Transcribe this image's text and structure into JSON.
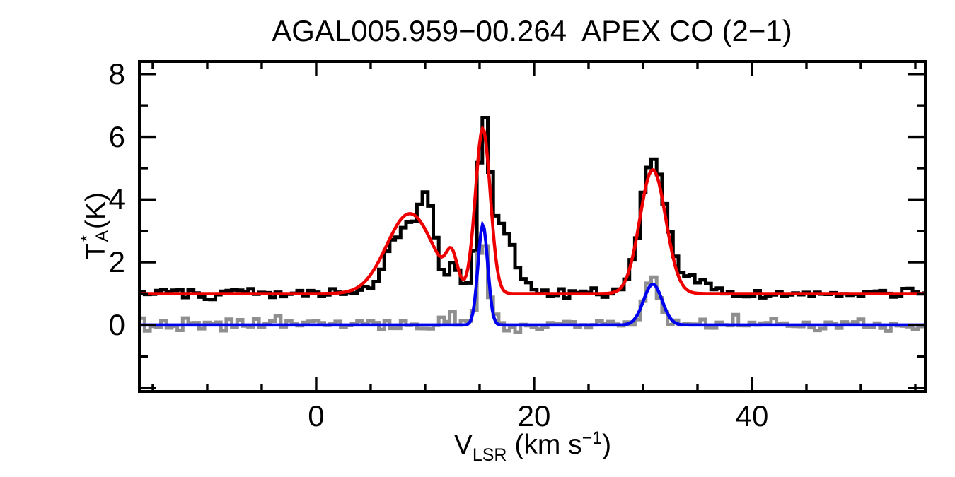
{
  "chart_data": {
    "type": "line",
    "title": "AGAL005.959−00.264  APEX CO (2−1)",
    "xlabel": "VLSR (km s−1)",
    "ylabel": "TA* (K)",
    "x_axis_label": {
      "main": "V",
      "sub": "LSR",
      "unit_open": " (km s",
      "unit_sup": "−1",
      "unit_close": ")"
    },
    "y_axis_label": {
      "main": "T",
      "sup": "*",
      "sub": "A",
      "unit": " (K)"
    },
    "xlim": [
      -16.23,
      55.91
    ],
    "ylim": [
      -2.12,
      8.4
    ],
    "grid": false,
    "legend": null,
    "x_major_ticks": [
      {
        "value": 0,
        "label": "0"
      },
      {
        "value": 20,
        "label": "20"
      },
      {
        "value": 40,
        "label": "40"
      }
    ],
    "x_minor_ticks": [
      -15,
      -10,
      -5,
      5,
      10,
      15,
      25,
      30,
      35,
      45,
      50,
      55
    ],
    "y_major_ticks": [
      {
        "value": -2,
        "label": ""
      },
      {
        "value": 0,
        "label": "0"
      },
      {
        "value": 2,
        "label": "2"
      },
      {
        "value": 4,
        "label": "4"
      },
      {
        "value": 6,
        "label": "6"
      },
      {
        "value": 8,
        "label": "8"
      }
    ],
    "y_minor_ticks": [
      -1,
      1,
      3,
      5,
      7
    ],
    "channel_width_kms": 0.5,
    "series": [
      {
        "name": "co21-observed-spectrum",
        "type": "histogram",
        "color": "#000000",
        "line_width": 5,
        "baseline": 1.0,
        "noise_sigma": 0.085,
        "noise_seed": 101,
        "profile_anchors": [
          [
            -16.25,
            1.05
          ],
          [
            -14,
            1.0
          ],
          [
            -12,
            1.05
          ],
          [
            -10,
            1.0
          ],
          [
            -8,
            1.02
          ],
          [
            -6,
            1.0
          ],
          [
            -4,
            1.03
          ],
          [
            -2,
            1.0
          ],
          [
            0,
            1.02
          ],
          [
            2,
            1.0
          ],
          [
            3.5,
            1.05
          ],
          [
            4.75,
            1.12
          ],
          [
            5.25,
            1.3
          ],
          [
            5.75,
            1.62
          ],
          [
            6.25,
            2.1
          ],
          [
            6.75,
            2.5
          ],
          [
            7.25,
            2.75
          ],
          [
            7.75,
            2.95
          ],
          [
            8.25,
            3.1
          ],
          [
            8.75,
            3.3
          ],
          [
            9.25,
            3.6
          ],
          [
            9.75,
            4.25
          ],
          [
            10.25,
            4.0
          ],
          [
            10.75,
            3.3
          ],
          [
            11.25,
            2.2
          ],
          [
            11.75,
            1.5
          ],
          [
            12.25,
            1.75
          ],
          [
            12.75,
            2.05
          ],
          [
            13.25,
            1.5
          ],
          [
            13.75,
            1.32
          ],
          [
            14.25,
            1.55
          ],
          [
            14.75,
            3.2
          ],
          [
            15.25,
            6.95
          ],
          [
            15.75,
            6.1
          ],
          [
            16.25,
            3.6
          ],
          [
            16.75,
            3.35
          ],
          [
            17.25,
            3.15
          ],
          [
            17.75,
            2.75
          ],
          [
            18.25,
            2.1
          ],
          [
            18.75,
            1.55
          ],
          [
            19.25,
            1.35
          ],
          [
            19.75,
            1.2
          ],
          [
            20.5,
            1.1
          ],
          [
            21.5,
            1.0
          ],
          [
            22.5,
            0.95
          ],
          [
            23.5,
            1.0
          ],
          [
            24.5,
            1.1
          ],
          [
            25.5,
            1.1
          ],
          [
            26.5,
            1.05
          ],
          [
            27.75,
            1.1
          ],
          [
            28.25,
            1.3
          ],
          [
            28.75,
            1.7
          ],
          [
            29.25,
            2.3
          ],
          [
            29.75,
            3.3
          ],
          [
            30.25,
            4.6
          ],
          [
            30.75,
            5.45
          ],
          [
            31.25,
            5.2
          ],
          [
            31.75,
            4.3
          ],
          [
            32.25,
            3.3
          ],
          [
            32.75,
            2.5
          ],
          [
            33.25,
            2.0
          ],
          [
            33.75,
            1.75
          ],
          [
            34.25,
            1.6
          ],
          [
            34.75,
            1.5
          ],
          [
            35.25,
            1.4
          ],
          [
            35.75,
            1.3
          ],
          [
            36.25,
            1.2
          ],
          [
            37.25,
            1.1
          ],
          [
            38.5,
            1.05
          ],
          [
            41,
            1.0
          ],
          [
            45,
            1.0
          ],
          [
            50,
            1.02
          ],
          [
            56.25,
            1.0
          ]
        ]
      },
      {
        "name": "reference-spectrum",
        "type": "histogram",
        "color": "#8f8f8f",
        "line_width": 5,
        "baseline": 0.0,
        "noise_sigma": 0.11,
        "noise_seed": 202,
        "profile_anchors": [
          [
            -16.25,
            0
          ],
          [
            11.75,
            0.05
          ],
          [
            12.25,
            0.25
          ],
          [
            12.75,
            0.35
          ],
          [
            13.25,
            0.1
          ],
          [
            13.75,
            0.0
          ],
          [
            14.25,
            0.1
          ],
          [
            14.75,
            1.0
          ],
          [
            15.25,
            3.55
          ],
          [
            15.75,
            1.55
          ],
          [
            16.25,
            0.4
          ],
          [
            16.75,
            0.2
          ],
          [
            17.25,
            0.1
          ],
          [
            18,
            0
          ],
          [
            28.75,
            0.05
          ],
          [
            29.25,
            0.15
          ],
          [
            29.75,
            0.5
          ],
          [
            30.25,
            1.05
          ],
          [
            30.75,
            1.45
          ],
          [
            31.25,
            1.15
          ],
          [
            31.75,
            0.6
          ],
          [
            32.25,
            0.3
          ],
          [
            32.75,
            0.15
          ],
          [
            33.5,
            0.05
          ],
          [
            34.5,
            0
          ],
          [
            56.25,
            0
          ]
        ]
      },
      {
        "name": "co21-gaussian-fit",
        "type": "gaussian_fit",
        "color": "#ee0000",
        "line_width": 4.5,
        "baseline": 1.0,
        "components": [
          {
            "center": 8.6,
            "amplitude": 2.55,
            "fwhm": 5.0
          },
          {
            "center": 12.45,
            "amplitude": 0.95,
            "fwhm": 1.2
          },
          {
            "center": 15.3,
            "amplitude": 5.25,
            "fwhm": 1.6
          },
          {
            "center": 30.9,
            "amplitude": 3.95,
            "fwhm": 2.8
          }
        ]
      },
      {
        "name": "reference-gaussian-fit",
        "type": "gaussian_fit",
        "color": "#0000f0",
        "line_width": 4.5,
        "baseline": 0.0,
        "components": [
          {
            "center": 15.3,
            "amplitude": 3.2,
            "fwhm": 1.05
          },
          {
            "center": 30.9,
            "amplitude": 1.3,
            "fwhm": 2.0
          }
        ]
      }
    ]
  }
}
